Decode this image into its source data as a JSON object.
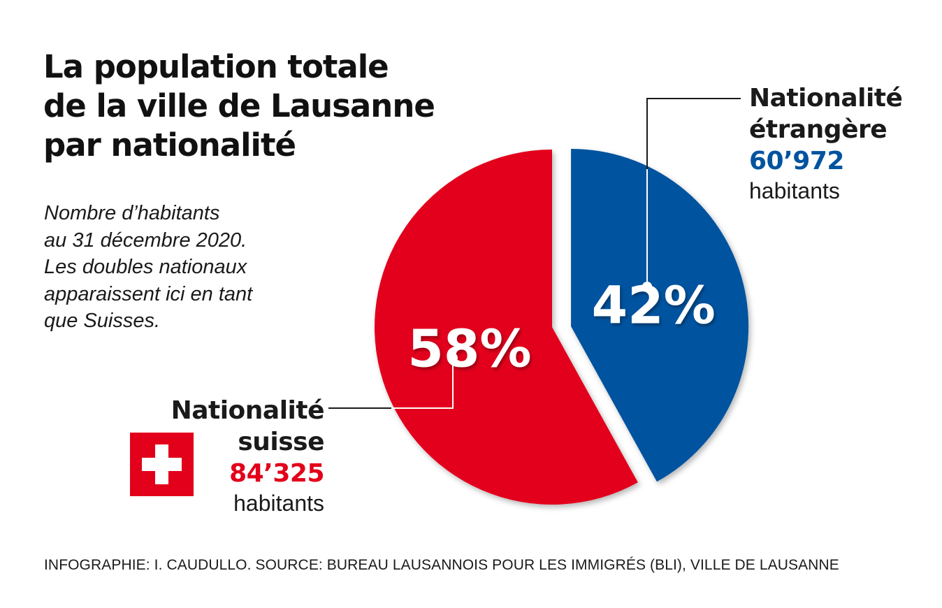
{
  "title": {
    "lines": [
      "La population totale",
      "de la ville de Lausanne",
      "par nationalité"
    ]
  },
  "subtitle": {
    "lines": [
      "Nombre d’habitants",
      "au 31 décembre 2020.",
      "Les doubles nationaux",
      "apparaissent ici en tant",
      "que Suisses."
    ]
  },
  "labels": {
    "foreign": {
      "name_line1": "Nationalité",
      "name_line2": "étrangère",
      "count": "60’972",
      "unit": "habitants"
    },
    "swiss": {
      "name_line1": "Nationalité",
      "name_line2": "suisse",
      "count": "84’325",
      "unit": "habitants",
      "flag_icon": "swiss-flag-icon"
    }
  },
  "footer": "INFOGRAPHIE: I. CAUDULLO. SOURCE: BUREAU LAUSANNOIS POUR LES IMMIGRÉS (BLI), VILLE DE LAUSANNE",
  "colors": {
    "swiss": "#e2001a",
    "foreign": "#00539f",
    "text": "#1a1a1a"
  },
  "chart_data": {
    "type": "pie",
    "title": "La population totale de la ville de Lausanne par nationalité",
    "subtitle": "Nombre d’habitants au 31 décembre 2020. Les doubles nationaux apparaissent ici en tant que Suisses.",
    "slices": [
      {
        "name": "Nationalité étrangère",
        "value": 60972,
        "percent": 42,
        "label": "42%",
        "color": "#00539f",
        "exploded": true
      },
      {
        "name": "Nationalité suisse",
        "value": 84325,
        "percent": 58,
        "label": "58%",
        "color": "#e2001a",
        "exploded": false
      }
    ],
    "start_angle": "12 o'clock",
    "direction": "clockwise",
    "source": "Bureau lausannois pour les immigrés (BLI), Ville de Lausanne"
  }
}
